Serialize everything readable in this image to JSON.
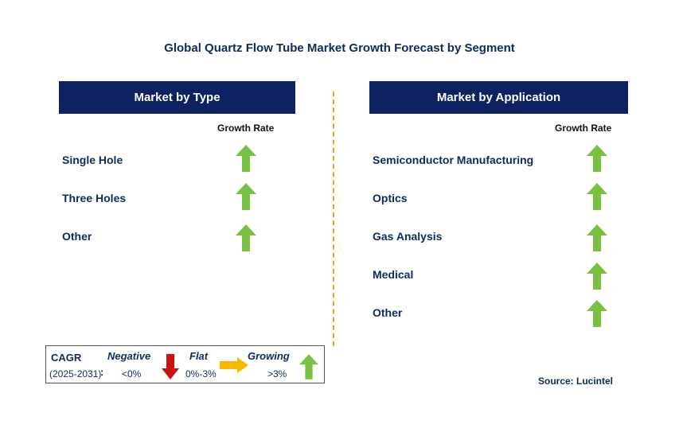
{
  "title": "Global Quartz Flow Tube Market Growth Forecast by Segment",
  "left_panel": {
    "header": "Market by Type",
    "growth_rate_label": "Growth Rate",
    "items": [
      {
        "label": "Single Hole",
        "trend": "growing"
      },
      {
        "label": "Three Holes",
        "trend": "growing"
      },
      {
        "label": "Other",
        "trend": "growing"
      }
    ]
  },
  "right_panel": {
    "header": "Market by Application",
    "growth_rate_label": "Growth Rate",
    "items": [
      {
        "label": "Semiconductor Manufacturing",
        "trend": "growing"
      },
      {
        "label": "Optics",
        "trend": "growing"
      },
      {
        "label": "Gas Analysis",
        "trend": "growing"
      },
      {
        "label": "Medical",
        "trend": "growing"
      },
      {
        "label": "Other",
        "trend": "growing"
      }
    ]
  },
  "legend": {
    "cagr_label": "CAGR",
    "period": "(2025-2031)",
    "colon": ":",
    "negative_label": "Negative",
    "negative_range": "<0%",
    "flat_label": "Flat",
    "flat_range": "0%-3%",
    "growing_label": "Growing",
    "growing_range": ">3%"
  },
  "source": "Source: Lucintel",
  "colors": {
    "header_bg": "#0e2161",
    "text_navy": "#0f2a5c",
    "arrow_green": "#7ac143",
    "arrow_red": "#cc1111",
    "arrow_orange": "#f5b800",
    "divider": "#f0a020"
  },
  "icons": {
    "growing": "up-arrow-icon",
    "negative": "down-arrow-icon",
    "flat": "right-arrow-icon"
  }
}
